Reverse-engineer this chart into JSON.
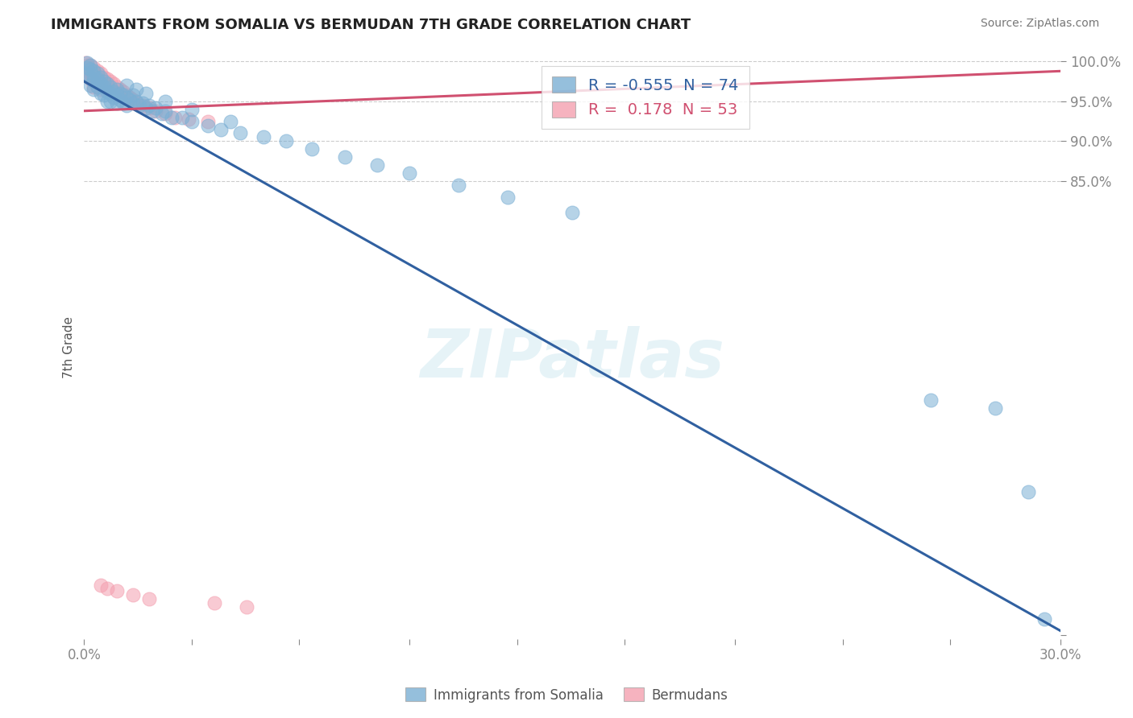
{
  "title": "IMMIGRANTS FROM SOMALIA VS BERMUDAN 7TH GRADE CORRELATION CHART",
  "source_text": "Source: ZipAtlas.com",
  "ylabel": "7th Grade",
  "watermark": "ZIPatlas",
  "right_axis_label_color": "#4472c4",
  "ylabel_color": "#555555",
  "title_color": "#222222",
  "background_color": "#ffffff",
  "grid_color": "#cccccc",
  "xlim": [
    0.0,
    0.3
  ],
  "ylim": [
    0.275,
    1.008
  ],
  "xticks": [
    0.0,
    0.033,
    0.066,
    0.1,
    0.133,
    0.166,
    0.2,
    0.233,
    0.266,
    0.3
  ],
  "xticklabels": [
    "0.0%",
    "",
    "",
    "",
    "",
    "",
    "",
    "",
    "",
    "30.0%"
  ],
  "yticks_right": [
    1.0,
    0.95,
    0.9,
    0.85,
    0.28
  ],
  "ytick_labels_right": [
    "100.0%",
    "95.0%",
    "90.0%",
    "85.0%",
    ""
  ],
  "somalia_color": "#7BAFD4",
  "bermuda_color": "#F4A0B0",
  "somalia_line_color": "#3060A0",
  "bermuda_line_color": "#D05070",
  "legend_somalia_label": "Immigrants from Somalia",
  "legend_bermuda_label": "Bermudans",
  "R_somalia": -0.555,
  "N_somalia": 74,
  "R_bermuda": 0.178,
  "N_bermuda": 53,
  "somalia_trend_x": [
    0.0,
    0.3
  ],
  "somalia_trend_y": [
    0.975,
    0.285
  ],
  "bermuda_trend_x": [
    0.0,
    0.3
  ],
  "bermuda_trend_y": [
    0.938,
    0.988
  ],
  "somalia_x": [
    0.001,
    0.001,
    0.001,
    0.002,
    0.002,
    0.002,
    0.002,
    0.003,
    0.003,
    0.003,
    0.003,
    0.004,
    0.004,
    0.004,
    0.005,
    0.005,
    0.005,
    0.006,
    0.006,
    0.006,
    0.007,
    0.007,
    0.007,
    0.008,
    0.008,
    0.008,
    0.009,
    0.009,
    0.01,
    0.01,
    0.01,
    0.011,
    0.011,
    0.012,
    0.012,
    0.013,
    0.013,
    0.014,
    0.015,
    0.015,
    0.016,
    0.017,
    0.018,
    0.019,
    0.02,
    0.021,
    0.022,
    0.024,
    0.025,
    0.027,
    0.03,
    0.033,
    0.038,
    0.042,
    0.048,
    0.055,
    0.062,
    0.07,
    0.08,
    0.09,
    0.1,
    0.115,
    0.13,
    0.15,
    0.013,
    0.016,
    0.019,
    0.025,
    0.033,
    0.045,
    0.26,
    0.28,
    0.29,
    0.295
  ],
  "somalia_y": [
    0.998,
    0.992,
    0.985,
    0.995,
    0.99,
    0.98,
    0.97,
    0.988,
    0.982,
    0.975,
    0.965,
    0.985,
    0.978,
    0.968,
    0.98,
    0.972,
    0.96,
    0.975,
    0.968,
    0.958,
    0.972,
    0.962,
    0.95,
    0.968,
    0.96,
    0.95,
    0.962,
    0.955,
    0.965,
    0.958,
    0.948,
    0.96,
    0.952,
    0.958,
    0.948,
    0.955,
    0.945,
    0.952,
    0.958,
    0.948,
    0.95,
    0.945,
    0.948,
    0.942,
    0.945,
    0.938,
    0.942,
    0.935,
    0.938,
    0.93,
    0.93,
    0.925,
    0.92,
    0.915,
    0.91,
    0.905,
    0.9,
    0.89,
    0.88,
    0.87,
    0.86,
    0.845,
    0.83,
    0.81,
    0.97,
    0.965,
    0.96,
    0.95,
    0.94,
    0.925,
    0.575,
    0.565,
    0.46,
    0.3
  ],
  "bermuda_x": [
    0.0005,
    0.001,
    0.001,
    0.001,
    0.002,
    0.002,
    0.002,
    0.002,
    0.003,
    0.003,
    0.003,
    0.003,
    0.003,
    0.004,
    0.004,
    0.004,
    0.004,
    0.005,
    0.005,
    0.005,
    0.005,
    0.006,
    0.006,
    0.006,
    0.007,
    0.007,
    0.007,
    0.008,
    0.008,
    0.009,
    0.009,
    0.01,
    0.01,
    0.011,
    0.012,
    0.013,
    0.014,
    0.015,
    0.016,
    0.018,
    0.02,
    0.022,
    0.025,
    0.028,
    0.032,
    0.038,
    0.005,
    0.007,
    0.01,
    0.015,
    0.02,
    0.04,
    0.05
  ],
  "bermuda_y": [
    0.998,
    0.995,
    0.99,
    0.985,
    0.995,
    0.99,
    0.985,
    0.978,
    0.992,
    0.988,
    0.982,
    0.975,
    0.968,
    0.988,
    0.982,
    0.975,
    0.968,
    0.985,
    0.98,
    0.972,
    0.965,
    0.98,
    0.975,
    0.968,
    0.978,
    0.972,
    0.965,
    0.975,
    0.968,
    0.972,
    0.962,
    0.968,
    0.96,
    0.965,
    0.962,
    0.958,
    0.955,
    0.952,
    0.948,
    0.945,
    0.942,
    0.938,
    0.935,
    0.93,
    0.928,
    0.925,
    0.342,
    0.338,
    0.335,
    0.33,
    0.325,
    0.32,
    0.315
  ]
}
